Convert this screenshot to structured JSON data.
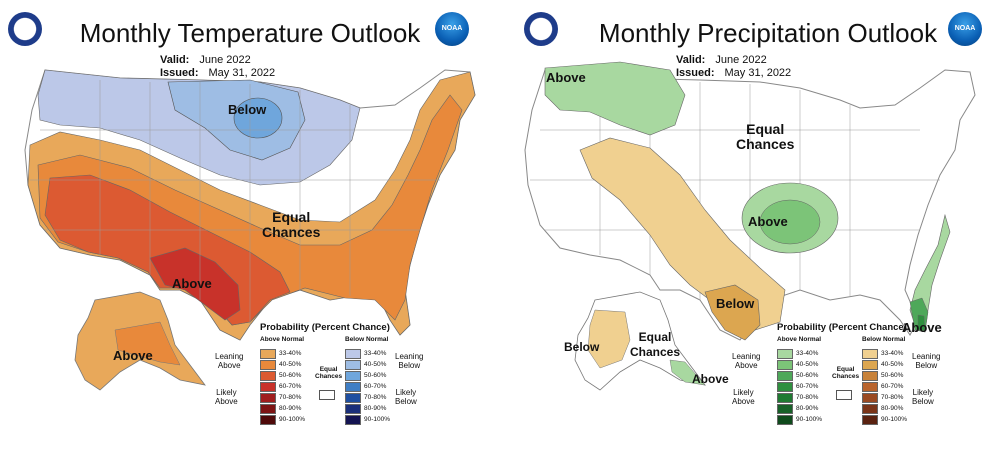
{
  "colors": {
    "above": [
      "#e8a85a",
      "#e8893b",
      "#dc5a32",
      "#c8322a",
      "#a01e1e",
      "#7d1414",
      "#4f0a0a"
    ],
    "below": [
      "#bcc8e8",
      "#9ebde4",
      "#6fa6dc",
      "#3f7ec4",
      "#1f4fa0",
      "#1a2f7a",
      "#141452"
    ],
    "wet": [
      "#a8d8a0",
      "#7cc478",
      "#4ea85a",
      "#2f8f3f",
      "#1f7a32",
      "#176028",
      "#0f4a1c"
    ],
    "dry": [
      "#f0d090",
      "#dca650",
      "#c8823a",
      "#b8642e",
      "#9a4a22",
      "#7a3418",
      "#5a2210"
    ]
  },
  "temperature": {
    "title": "Monthly Temperature Outlook",
    "valid_label": "Valid:",
    "valid_value": "June 2022",
    "issued_label": "Issued:",
    "issued_value": "May 31, 2022",
    "labels": {
      "below": "Below",
      "equal": "Equal\nChances",
      "above_main": "Above",
      "above_alaska": "Above"
    },
    "legend": {
      "title": "Probability (Percent Chance)",
      "above_head": "Above Normal",
      "below_head": "Below Normal",
      "ranges": [
        "33-40%",
        "40-50%",
        "50-60%",
        "60-70%",
        "70-80%",
        "80-90%",
        "90-100%"
      ],
      "leaning_left": "Leaning\nAbove",
      "likely_left": "Likely\nAbove",
      "leaning_right": "Leaning\nBelow",
      "likely_right": "Likely\nBelow",
      "equal": "Equal\nChances"
    }
  },
  "precipitation": {
    "title": "Monthly Precipitation Outlook",
    "valid_label": "Valid:",
    "valid_value": "June 2022",
    "issued_label": "Issued:",
    "issued_value": "May 31, 2022",
    "labels": {
      "above_nw": "Above",
      "equal": "Equal\nChances",
      "above_center": "Above",
      "below_south": "Below",
      "above_fl": "Above",
      "below_ak": "Below",
      "equal_ak": "Equal\nChances",
      "above_ak": "Above"
    },
    "legend": {
      "title": "Probability (Percent Chance)",
      "above_head": "Above Normal",
      "below_head": "Below Normal",
      "ranges": [
        "33-40%",
        "40-50%",
        "50-60%",
        "60-70%",
        "70-80%",
        "80-90%",
        "90-100%"
      ],
      "leaning_left": "Leaning\nAbove",
      "likely_left": "Likely\nAbove",
      "leaning_right": "Leaning\nBelow",
      "likely_right": "Likely\nBelow",
      "equal": "Equal\nChances"
    }
  }
}
